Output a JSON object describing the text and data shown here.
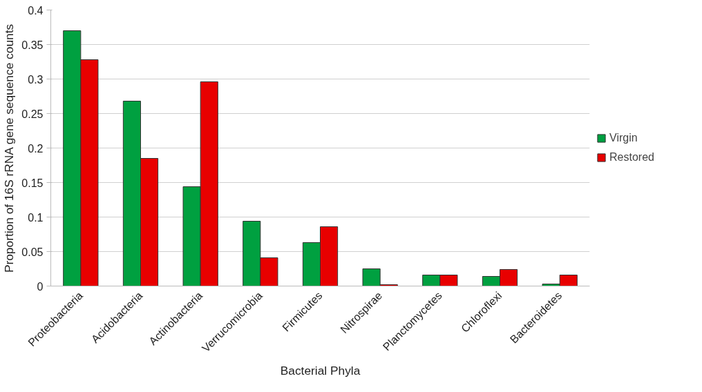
{
  "chart_data": {
    "type": "bar",
    "xlabel": "Bacterial Phyla",
    "ylabel": "Proportion of 16S rRNA gene sequence counts",
    "categories": [
      "Proteobacteria",
      "Acidobacteria",
      "Actinobacteria",
      "Verrucomicrobia",
      "Firmicutes",
      "Nitrospirae",
      "Planctomycetes",
      "Chloroflexi",
      "Bacteroidetes"
    ],
    "series": [
      {
        "name": "Virgin",
        "color": "#00a040",
        "values": [
          0.37,
          0.268,
          0.144,
          0.094,
          0.063,
          0.025,
          0.016,
          0.014,
          0.003
        ]
      },
      {
        "name": "Restored",
        "color": "#e80000",
        "values": [
          0.328,
          0.185,
          0.296,
          0.041,
          0.086,
          0.002,
          0.016,
          0.024,
          0.016
        ]
      }
    ],
    "ylim": [
      0,
      0.4
    ],
    "yticks": [
      0,
      0.05,
      0.1,
      0.15,
      0.2,
      0.25,
      0.3,
      0.35,
      0.4
    ],
    "grid": "y",
    "legend": "right"
  }
}
